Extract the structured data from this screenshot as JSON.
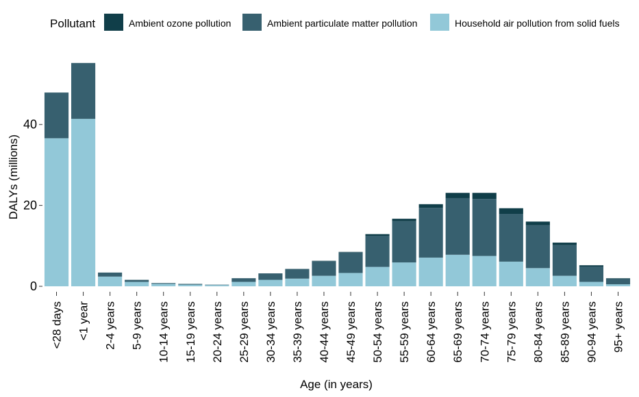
{
  "chart_data": {
    "type": "bar",
    "stacked": true,
    "title": "",
    "xlabel": "Age (in years)",
    "ylabel": "DALYs (millions)",
    "ylim": [
      0,
      56
    ],
    "yticks": [
      0,
      20,
      40
    ],
    "grid": false,
    "legend_position": "top",
    "legend_title": "Pollutant",
    "categories": [
      "<28 days",
      "<1 year",
      "2-4 years",
      "5-9 years",
      "10-14 years",
      "15-19 years",
      "20-24 years",
      "25-29 years",
      "30-34 years",
      "35-39 years",
      "40-44 years",
      "45-49 years",
      "50-54 years",
      "55-59 years",
      "60-64 years",
      "65-69 years",
      "70-74 years",
      "75-79 years",
      "80-84 years",
      "85-89 years",
      "90-94 years",
      "95+ years"
    ],
    "series": [
      {
        "name": "Household air pollution from solid fuels",
        "color": "#92C8D8",
        "values": [
          36.6,
          41.4,
          2.4,
          1.1,
          0.6,
          0.4,
          0.3,
          1.1,
          1.6,
          1.9,
          2.6,
          3.3,
          4.8,
          5.9,
          7.1,
          7.8,
          7.5,
          6.1,
          4.5,
          2.6,
          1.1,
          0.5
        ]
      },
      {
        "name": "Ambient particulate matter pollution",
        "color": "#37606F",
        "values": [
          11.3,
          13.8,
          1.0,
          0.5,
          0.2,
          0.2,
          0.1,
          0.9,
          1.6,
          2.4,
          3.6,
          5.1,
          7.7,
          10.2,
          12.3,
          14.0,
          14.1,
          11.8,
          10.6,
          7.6,
          3.8,
          1.4
        ]
      },
      {
        "name": "Ambient ozone pollution",
        "color": "#103E49",
        "values": [
          0,
          0,
          0,
          0,
          0,
          0,
          0,
          0,
          0,
          0,
          0.1,
          0.1,
          0.4,
          0.6,
          0.9,
          1.3,
          1.5,
          1.4,
          0.9,
          0.6,
          0.3,
          0.1
        ]
      }
    ]
  }
}
